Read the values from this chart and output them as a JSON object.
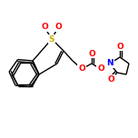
{
  "bg_color": "#ffffff",
  "bond_color": "#000000",
  "atom_colors": {
    "S": "#ccaa00",
    "O": "#ff0000",
    "N": "#0000ff",
    "C": "#000000"
  },
  "line_width": 1.0,
  "font_size": 6.5,
  "figsize": [
    1.52,
    1.52
  ],
  "dpi": 100
}
